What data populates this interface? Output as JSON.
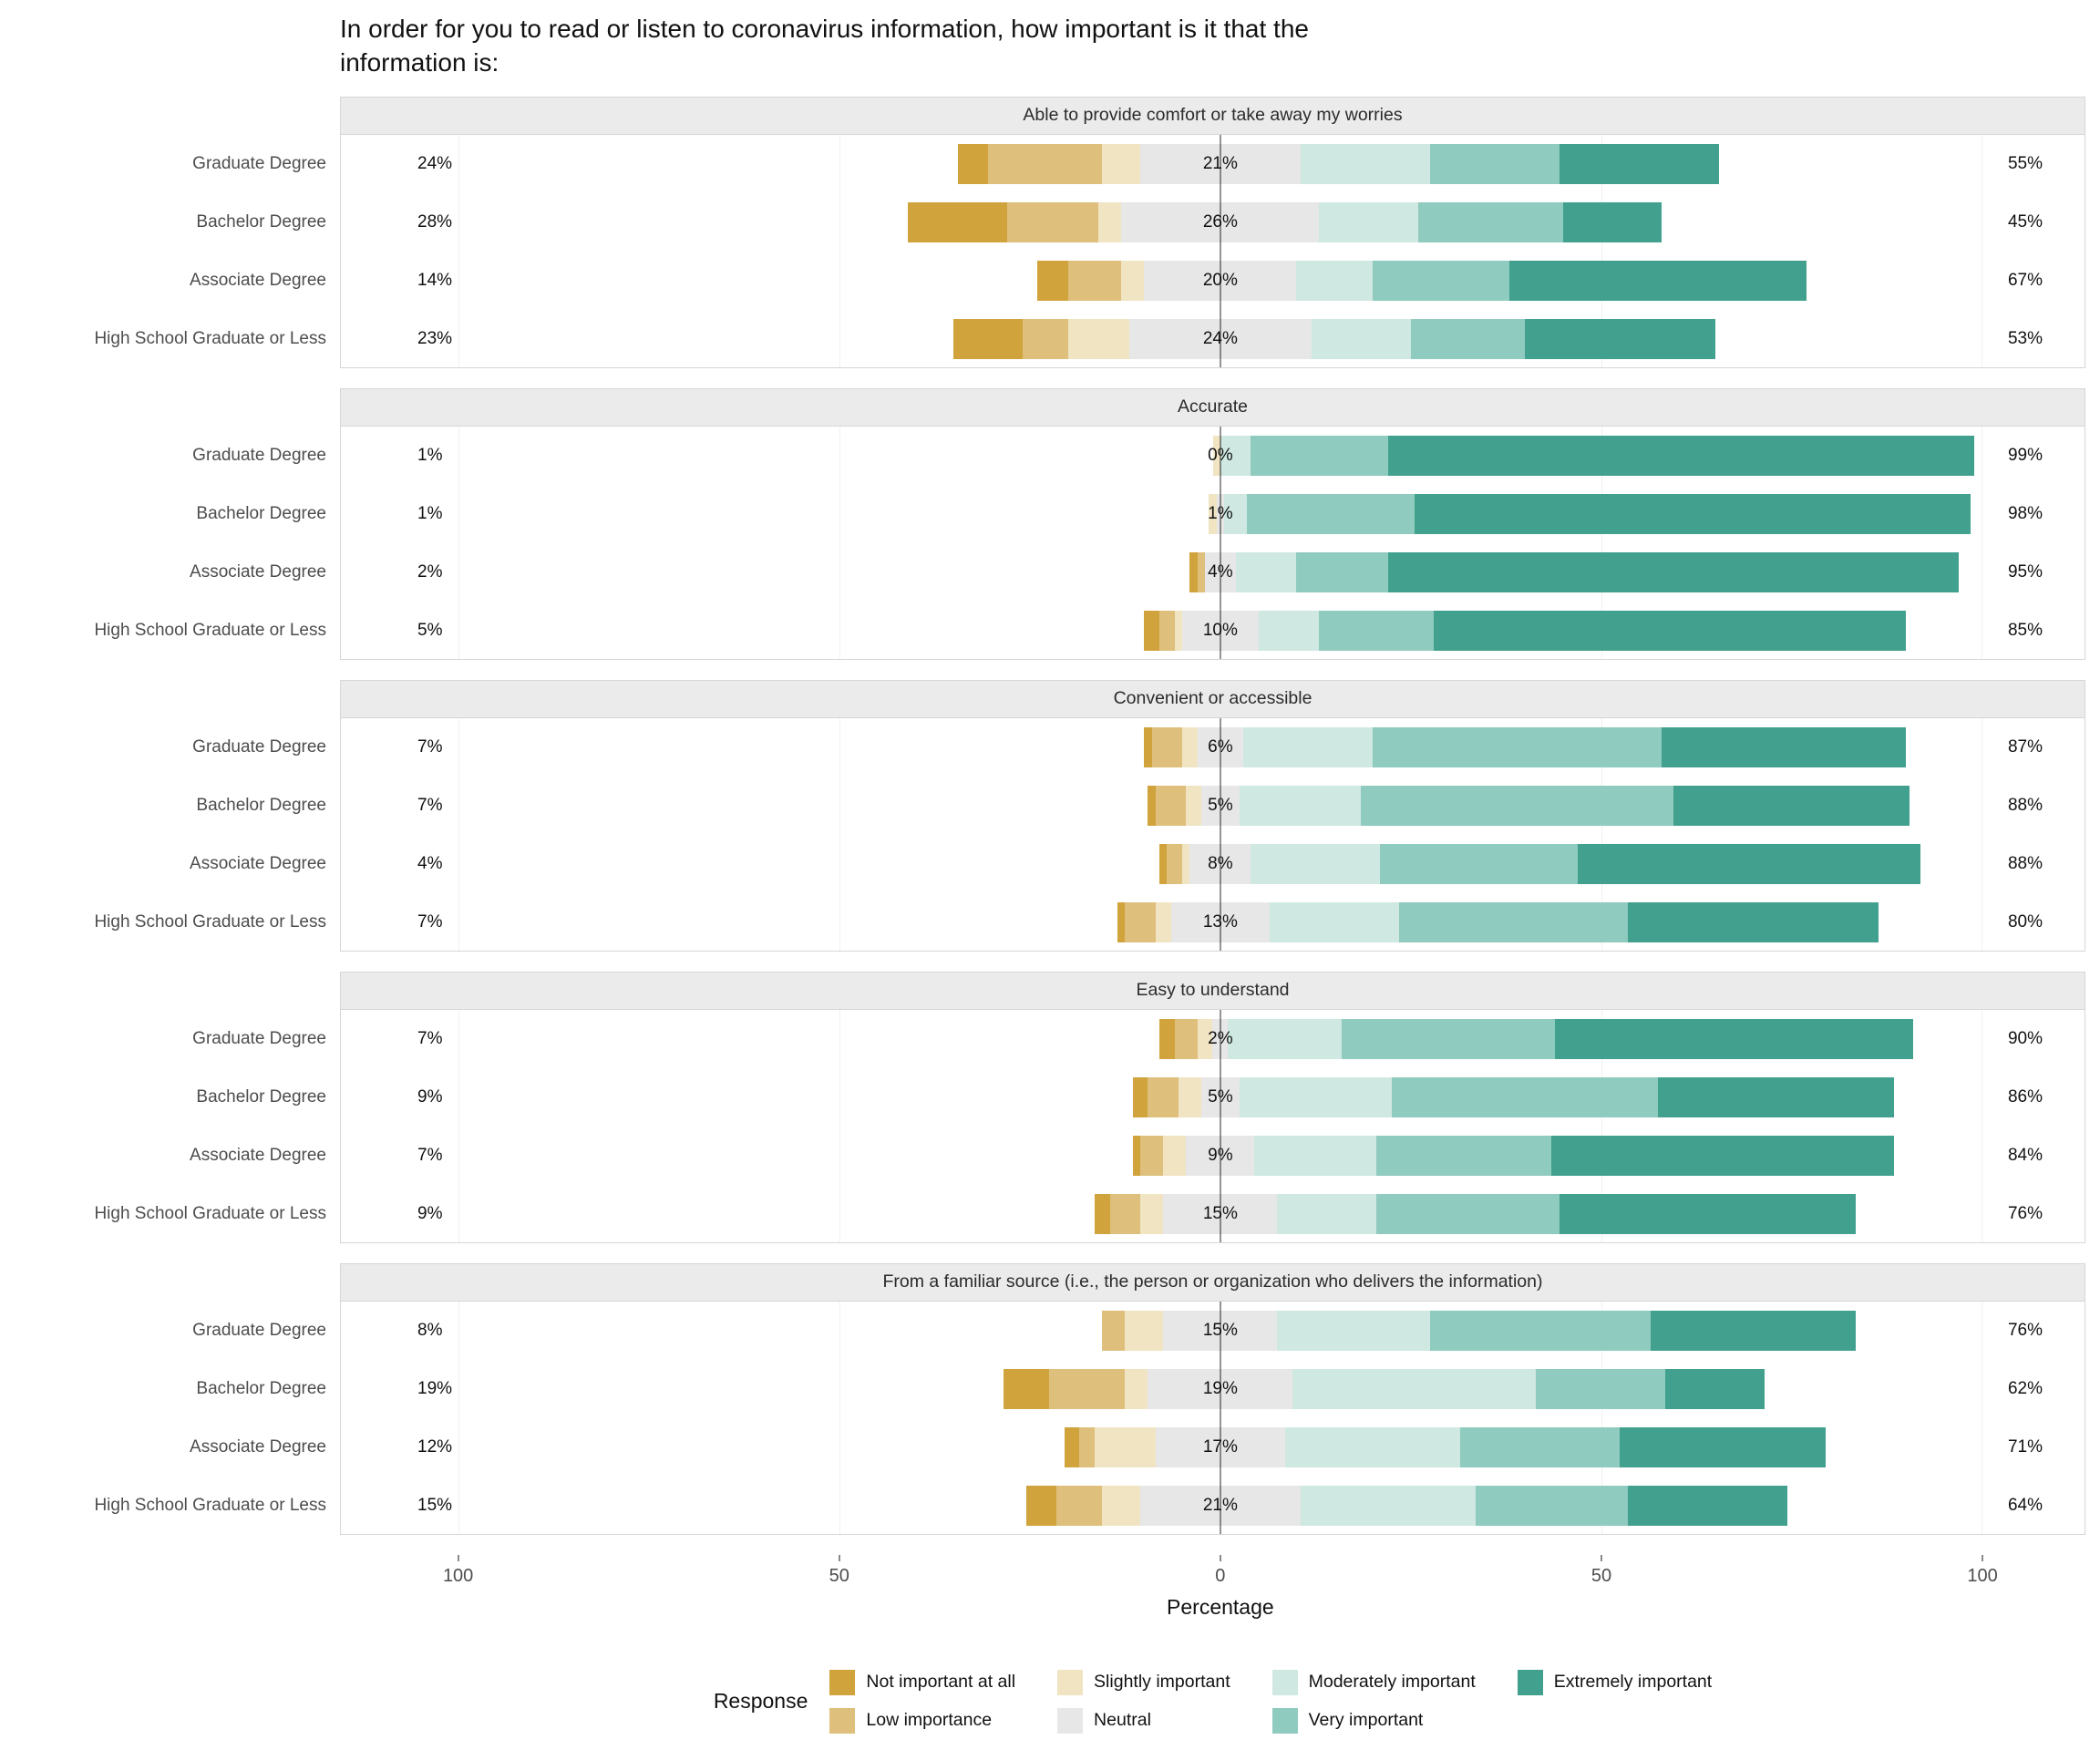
{
  "title": "In order for you to read or listen to coronavirus information, how important is it that the\ninformation is:",
  "chart_data": {
    "type": "bar",
    "variant": "diverging-stacked-likert",
    "title": "In order for you to read or listen to coronavirus information, how important is it that the information is:",
    "xlabel": "Percentage",
    "xlim": [
      -115.5,
      113.5
    ],
    "x_ticks": [
      -100,
      -50,
      0,
      50,
      100
    ],
    "x_tick_labels": [
      "100",
      "50",
      "0",
      "50",
      "100"
    ],
    "grid": "light vertical gridlines at ±50 and ±100, dark center line at 0",
    "legend_title": "Response",
    "legend_position": "bottom",
    "levels": [
      "Not important at all",
      "Low importance",
      "Slightly important",
      "Neutral",
      "Moderately important",
      "Very important",
      "Extremely important"
    ],
    "level_colors": [
      "#d1a33c",
      "#dec07c",
      "#f0e4c3",
      "#e7e7e7",
      "#cfe8e2",
      "#8fcbbe",
      "#42a18e"
    ],
    "categories": [
      "Graduate Degree",
      "Bachelor Degree",
      "Associate Degree",
      "High School Graduate or Less"
    ],
    "panels": [
      {
        "title": "Able to provide comfort or take away my worries",
        "rows": [
          {
            "category": "Graduate Degree",
            "values": [
              4,
              15,
              5,
              21,
              17,
              17,
              21
            ],
            "neg_label": "24%",
            "mid_label": "21%",
            "pos_label": "55%"
          },
          {
            "category": "Bachelor Degree",
            "values": [
              13,
              12,
              3,
              26,
              13,
              19,
              13
            ],
            "neg_label": "28%",
            "mid_label": "26%",
            "pos_label": "45%"
          },
          {
            "category": "Associate Degree",
            "values": [
              4,
              7,
              3,
              20,
              10,
              18,
              39
            ],
            "neg_label": "14%",
            "mid_label": "20%",
            "pos_label": "67%"
          },
          {
            "category": "High School Graduate or Less",
            "values": [
              9,
              6,
              8,
              24,
              13,
              15,
              25
            ],
            "neg_label": "23%",
            "mid_label": "24%",
            "pos_label": "53%"
          }
        ]
      },
      {
        "title": "Accurate",
        "rows": [
          {
            "category": "Graduate Degree",
            "values": [
              0,
              0,
              1,
              0,
              4,
              18,
              77
            ],
            "neg_label": "1%",
            "mid_label": "0%",
            "pos_label": "99%"
          },
          {
            "category": "Bachelor Degree",
            "values": [
              0,
              0,
              1,
              1,
              3,
              22,
              73
            ],
            "neg_label": "1%",
            "mid_label": "1%",
            "pos_label": "98%"
          },
          {
            "category": "Associate Degree",
            "values": [
              1,
              1,
              0,
              4,
              8,
              12,
              75
            ],
            "neg_label": "2%",
            "mid_label": "4%",
            "pos_label": "95%"
          },
          {
            "category": "High School Graduate or Less",
            "values": [
              2,
              2,
              1,
              10,
              8,
              15,
              62
            ],
            "neg_label": "5%",
            "mid_label": "10%",
            "pos_label": "85%"
          }
        ]
      },
      {
        "title": "Convenient or accessible",
        "rows": [
          {
            "category": "Graduate Degree",
            "values": [
              1,
              4,
              2,
              6,
              17,
              38,
              32
            ],
            "neg_label": "7%",
            "mid_label": "6%",
            "pos_label": "87%"
          },
          {
            "category": "Bachelor Degree",
            "values": [
              1,
              4,
              2,
              5,
              16,
              41,
              31
            ],
            "neg_label": "7%",
            "mid_label": "5%",
            "pos_label": "88%"
          },
          {
            "category": "Associate Degree",
            "values": [
              1,
              2,
              1,
              8,
              17,
              26,
              45
            ],
            "neg_label": "4%",
            "mid_label": "8%",
            "pos_label": "88%"
          },
          {
            "category": "High School Graduate or Less",
            "values": [
              1,
              4,
              2,
              13,
              17,
              30,
              33
            ],
            "neg_label": "7%",
            "mid_label": "13%",
            "pos_label": "80%"
          }
        ]
      },
      {
        "title": "Easy to understand",
        "rows": [
          {
            "category": "Graduate Degree",
            "values": [
              2,
              3,
              2,
              2,
              15,
              28,
              47
            ],
            "neg_label": "7%",
            "mid_label": "2%",
            "pos_label": "90%"
          },
          {
            "category": "Bachelor Degree",
            "values": [
              2,
              4,
              3,
              5,
              20,
              35,
              31
            ],
            "neg_label": "9%",
            "mid_label": "5%",
            "pos_label": "86%"
          },
          {
            "category": "Associate Degree",
            "values": [
              1,
              3,
              3,
              9,
              16,
              23,
              45
            ],
            "neg_label": "7%",
            "mid_label": "9%",
            "pos_label": "84%"
          },
          {
            "category": "High School Graduate or Less",
            "values": [
              2,
              4,
              3,
              15,
              13,
              24,
              39
            ],
            "neg_label": "9%",
            "mid_label": "15%",
            "pos_label": "76%"
          }
        ]
      },
      {
        "title": "From a familiar source (i.e., the person or organization who delivers the information)",
        "rows": [
          {
            "category": "Graduate Degree",
            "values": [
              0,
              3,
              5,
              15,
              20,
              29,
              27
            ],
            "neg_label": "8%",
            "mid_label": "15%",
            "pos_label": "76%"
          },
          {
            "category": "Bachelor Degree",
            "values": [
              6,
              10,
              3,
              19,
              32,
              17,
              13
            ],
            "neg_label": "19%",
            "mid_label": "19%",
            "pos_label": "62%"
          },
          {
            "category": "Associate Degree",
            "values": [
              2,
              2,
              8,
              17,
              23,
              21,
              27
            ],
            "neg_label": "12%",
            "mid_label": "17%",
            "pos_label": "71%"
          },
          {
            "category": "High School Graduate or Less",
            "values": [
              4,
              6,
              5,
              21,
              23,
              20,
              21
            ],
            "neg_label": "15%",
            "mid_label": "21%",
            "pos_label": "64%"
          }
        ]
      }
    ]
  }
}
